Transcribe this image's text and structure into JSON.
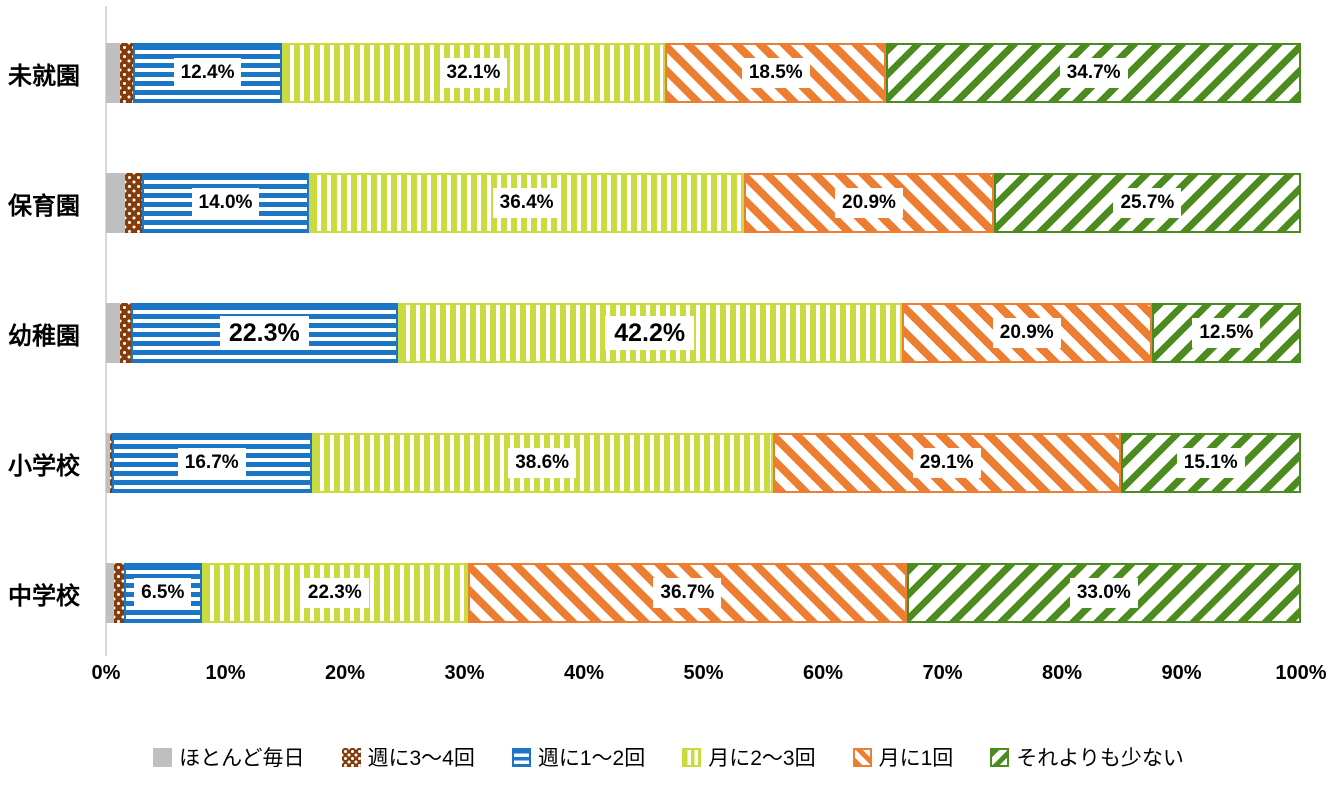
{
  "chart_data": {
    "type": "bar",
    "orientation": "horizontal-stacked",
    "title": "",
    "xlabel": "",
    "ylabel": "",
    "xlim": [
      0,
      100
    ],
    "grid": false,
    "legend_position": "bottom",
    "x_ticks": [
      "0%",
      "10%",
      "20%",
      "30%",
      "40%",
      "50%",
      "60%",
      "70%",
      "80%",
      "90%",
      "100%"
    ],
    "categories": [
      "未就園",
      "保育園",
      "幼稚園",
      "小学校",
      "中学校"
    ],
    "series": [
      {
        "key": "almost-every-day",
        "name": "ほとんど毎日",
        "color": "#bfbfbf",
        "pattern": "solid",
        "values": [
          1.2,
          1.6,
          1.2,
          0.3,
          0.7
        ],
        "labels": [
          "",
          "",
          "",
          "",
          ""
        ]
      },
      {
        "key": "week-3-4",
        "name": "週に3～4回",
        "color": "#843c0c",
        "pattern": "dots",
        "values": [
          1.1,
          1.4,
          0.9,
          0.2,
          0.8
        ],
        "labels": [
          "",
          "",
          "",
          "",
          ""
        ]
      },
      {
        "key": "week-1-2",
        "name": "週に1～2回",
        "color": "#1b76c5",
        "pattern": "hstripe",
        "values": [
          12.4,
          14.0,
          22.3,
          16.7,
          6.5
        ],
        "labels": [
          "12.4%",
          "14.0%",
          "22.3%",
          "16.7%",
          "6.5%"
        ],
        "label_large": [
          false,
          false,
          true,
          false,
          false
        ]
      },
      {
        "key": "month-2-3",
        "name": "月に2～3回",
        "color": "#c9db3e",
        "pattern": "vstripe",
        "values": [
          32.1,
          36.4,
          42.2,
          38.6,
          22.3
        ],
        "labels": [
          "32.1%",
          "36.4%",
          "42.2%",
          "38.6%",
          "22.3%"
        ],
        "label_large": [
          false,
          false,
          true,
          false,
          false
        ]
      },
      {
        "key": "month-1",
        "name": "月に1回",
        "color": "#ed7d31",
        "pattern": "diag-down",
        "values": [
          18.5,
          20.9,
          20.9,
          29.1,
          36.7
        ],
        "labels": [
          "18.5%",
          "20.9%",
          "20.9%",
          "29.1%",
          "36.7%"
        ]
      },
      {
        "key": "less-often",
        "name": "それよりも少ない",
        "color": "#4c8b1e",
        "pattern": "diag-up",
        "values": [
          34.7,
          25.7,
          12.5,
          15.1,
          33.0
        ],
        "labels": [
          "34.7%",
          "25.7%",
          "12.5%",
          "15.1%",
          "33.0%"
        ]
      }
    ]
  }
}
